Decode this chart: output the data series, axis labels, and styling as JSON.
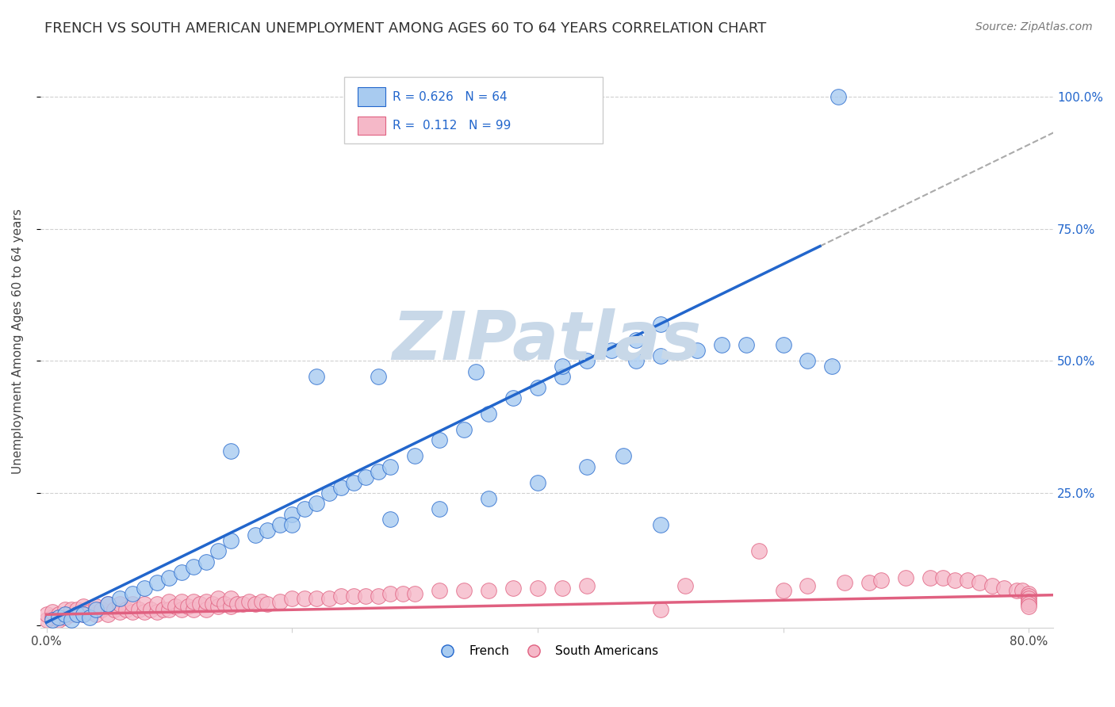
{
  "title": "FRENCH VS SOUTH AMERICAN UNEMPLOYMENT AMONG AGES 60 TO 64 YEARS CORRELATION CHART",
  "source": "Source: ZipAtlas.com",
  "ylabel": "Unemployment Among Ages 60 to 64 years",
  "xlim": [
    -0.005,
    0.82
  ],
  "ylim": [
    -0.005,
    1.08
  ],
  "xticks": [
    0.0,
    0.2,
    0.4,
    0.6,
    0.8
  ],
  "xticklabels": [
    "0.0%",
    "",
    "",
    "",
    "80.0%"
  ],
  "yticks": [
    0.0,
    0.25,
    0.5,
    0.75,
    1.0
  ],
  "yticklabels": [
    "",
    "25.0%",
    "50.0%",
    "75.0%",
    "100.0%"
  ],
  "french_R": "0.626",
  "french_N": "64",
  "south_american_R": "0.112",
  "south_american_N": "99",
  "french_color": "#A8CBF0",
  "french_line_color": "#2266CC",
  "south_american_color": "#F5B8C8",
  "south_american_line_color": "#E06080",
  "background_color": "#ffffff",
  "grid_color": "#d0d0d0",
  "watermark_color": "#c8d8e8",
  "title_fontsize": 13,
  "label_fontsize": 11,
  "tick_fontsize": 11,
  "french_line_slope": 1.13,
  "french_line_intercept": 0.005,
  "sa_line_slope": 0.045,
  "sa_line_intercept": 0.02,
  "french_scatter_x": [
    0.005,
    0.01,
    0.015,
    0.02,
    0.025,
    0.03,
    0.035,
    0.04,
    0.05,
    0.06,
    0.07,
    0.08,
    0.09,
    0.1,
    0.11,
    0.12,
    0.13,
    0.14,
    0.15,
    0.17,
    0.18,
    0.19,
    0.2,
    0.21,
    0.22,
    0.23,
    0.24,
    0.25,
    0.26,
    0.27,
    0.28,
    0.3,
    0.32,
    0.34,
    0.36,
    0.38,
    0.4,
    0.42,
    0.44,
    0.46,
    0.48,
    0.5,
    0.22,
    0.27,
    0.35,
    0.42,
    0.48,
    0.5,
    0.53,
    0.55,
    0.57,
    0.6,
    0.62,
    0.64,
    0.15,
    0.2,
    0.28,
    0.32,
    0.36,
    0.4,
    0.44,
    0.47,
    0.5,
    0.645
  ],
  "french_scatter_y": [
    0.01,
    0.015,
    0.02,
    0.01,
    0.02,
    0.02,
    0.015,
    0.03,
    0.04,
    0.05,
    0.06,
    0.07,
    0.08,
    0.09,
    0.1,
    0.11,
    0.12,
    0.14,
    0.16,
    0.17,
    0.18,
    0.19,
    0.21,
    0.22,
    0.23,
    0.25,
    0.26,
    0.27,
    0.28,
    0.29,
    0.3,
    0.32,
    0.35,
    0.37,
    0.4,
    0.43,
    0.45,
    0.47,
    0.5,
    0.52,
    0.54,
    0.57,
    0.47,
    0.47,
    0.48,
    0.49,
    0.5,
    0.51,
    0.52,
    0.53,
    0.53,
    0.53,
    0.5,
    0.49,
    0.33,
    0.19,
    0.2,
    0.22,
    0.24,
    0.27,
    0.3,
    0.32,
    0.19,
    1.0
  ],
  "sa_scatter_x": [
    0.0,
    0.0,
    0.005,
    0.005,
    0.01,
    0.01,
    0.015,
    0.015,
    0.02,
    0.02,
    0.025,
    0.025,
    0.03,
    0.03,
    0.035,
    0.04,
    0.04,
    0.045,
    0.05,
    0.05,
    0.055,
    0.06,
    0.06,
    0.065,
    0.07,
    0.07,
    0.075,
    0.08,
    0.08,
    0.085,
    0.09,
    0.09,
    0.095,
    0.1,
    0.1,
    0.105,
    0.11,
    0.11,
    0.115,
    0.12,
    0.12,
    0.125,
    0.13,
    0.13,
    0.135,
    0.14,
    0.14,
    0.145,
    0.15,
    0.15,
    0.155,
    0.16,
    0.165,
    0.17,
    0.175,
    0.18,
    0.19,
    0.2,
    0.21,
    0.22,
    0.23,
    0.24,
    0.25,
    0.26,
    0.27,
    0.28,
    0.29,
    0.3,
    0.32,
    0.34,
    0.36,
    0.38,
    0.4,
    0.42,
    0.44,
    0.5,
    0.52,
    0.58,
    0.6,
    0.62,
    0.65,
    0.67,
    0.68,
    0.7,
    0.72,
    0.73,
    0.74,
    0.75,
    0.76,
    0.77,
    0.78,
    0.79,
    0.795,
    0.8,
    0.8,
    0.8,
    0.8,
    0.8,
    0.8
  ],
  "sa_scatter_y": [
    0.01,
    0.02,
    0.015,
    0.025,
    0.01,
    0.02,
    0.015,
    0.03,
    0.02,
    0.03,
    0.02,
    0.03,
    0.02,
    0.035,
    0.025,
    0.02,
    0.035,
    0.03,
    0.02,
    0.04,
    0.03,
    0.025,
    0.04,
    0.03,
    0.025,
    0.04,
    0.03,
    0.025,
    0.04,
    0.03,
    0.025,
    0.04,
    0.03,
    0.03,
    0.045,
    0.035,
    0.03,
    0.045,
    0.035,
    0.03,
    0.045,
    0.04,
    0.03,
    0.045,
    0.04,
    0.035,
    0.05,
    0.04,
    0.035,
    0.05,
    0.04,
    0.04,
    0.045,
    0.04,
    0.045,
    0.04,
    0.045,
    0.05,
    0.05,
    0.05,
    0.05,
    0.055,
    0.055,
    0.055,
    0.055,
    0.06,
    0.06,
    0.06,
    0.065,
    0.065,
    0.065,
    0.07,
    0.07,
    0.07,
    0.075,
    0.03,
    0.075,
    0.14,
    0.065,
    0.075,
    0.08,
    0.08,
    0.085,
    0.09,
    0.09,
    0.09,
    0.085,
    0.085,
    0.08,
    0.075,
    0.07,
    0.065,
    0.065,
    0.06,
    0.055,
    0.05,
    0.045,
    0.04,
    0.035
  ]
}
